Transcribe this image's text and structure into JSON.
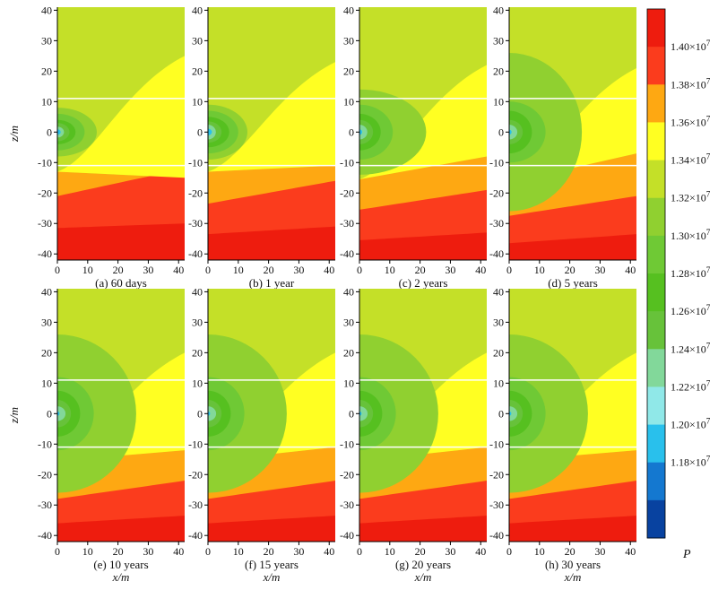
{
  "chart_data": {
    "type": "heatmap",
    "description_units": {
      "x": "m",
      "z": "m",
      "P": "Pa"
    },
    "x_label": "x/m",
    "z_label": "z/m",
    "xlim": [
      0,
      42
    ],
    "zlim": [
      -42,
      41
    ],
    "x_ticks": [
      0,
      10,
      20,
      30,
      40
    ],
    "x_tick_labels": [
      "0",
      "10",
      "20",
      "30",
      "40"
    ],
    "z_ticks": [
      40,
      30,
      20,
      10,
      0,
      -10,
      -20,
      -30,
      -40
    ],
    "z_tick_labels": [
      "40",
      "30",
      "20",
      "10",
      "0",
      "-10",
      "-20",
      "-30",
      "-40"
    ],
    "white_lines_z": [
      11,
      -11
    ],
    "colorbar": {
      "title": "P",
      "tick_labels": [
        "1.40×10^7",
        "1.38×10^7",
        "1.36×10^7",
        "1.34×10^7",
        "1.32×10^7",
        "1.30×10^7",
        "1.28×10^7",
        "1.26×10^7",
        "1.24×10^7",
        "1.22×10^7",
        "1.20×10^7",
        "1.18×10^7"
      ],
      "colors_top_to_bottom": [
        "#ee1c0e",
        "#fb3c1d",
        "#fea812",
        "#ffff22",
        "#c4e028",
        "#90d030",
        "#6fc935",
        "#56c020",
        "#67c23a",
        "#82d89a",
        "#90e8e8",
        "#29c0ec",
        "#1478d0",
        "#0842a0"
      ]
    },
    "panels": [
      {
        "label": "(a) 60 days",
        "bands": [
          [
            13.0,
            25,
            15
          ],
          [
            21,
            16,
            12
          ],
          [
            31.5,
            32,
            30
          ]
        ],
        "center_rings": [
          [
            13,
            8
          ],
          [
            9,
            6
          ],
          [
            6,
            4
          ],
          [
            4,
            3
          ],
          [
            2.2,
            1.8
          ],
          [
            1.1,
            0.9
          ]
        ]
      },
      {
        "label": "(b) 1 year",
        "bands": [
          [
            13.0,
            23,
            11
          ],
          [
            23.5,
            20,
            16
          ],
          [
            33.5,
            34,
            31
          ]
        ],
        "center_rings": [
          [
            13,
            9
          ],
          [
            10,
            7
          ],
          [
            7,
            5
          ],
          [
            4.5,
            3.5
          ],
          [
            2.6,
            2.4
          ],
          [
            1.3,
            1.1
          ]
        ]
      },
      {
        "label": "(c) 2 years",
        "bands": [
          [
            15.5,
            22,
            8
          ],
          [
            25.5,
            23,
            19
          ],
          [
            35.5,
            35,
            33
          ]
        ],
        "center_rings": [
          [
            22,
            14
          ],
          [
            11,
            9
          ],
          [
            7,
            6
          ],
          [
            4.5,
            4
          ],
          [
            2.6,
            2.4
          ],
          [
            0.9,
            0.9
          ]
        ]
      },
      {
        "label": "(d) 5 years",
        "bands": [
          [
            16.5,
            21,
            7
          ],
          [
            27.5,
            26,
            21
          ],
          [
            36.5,
            35.5,
            33.5
          ]
        ],
        "center_rings": [
          [
            24,
            26
          ],
          [
            12,
            10
          ],
          [
            7.5,
            7
          ],
          [
            4.5,
            4
          ],
          [
            2.7,
            2.4
          ],
          [
            0.8,
            0.8
          ]
        ]
      },
      {
        "label": "(e) 10 years",
        "bands": [
          [
            15.5,
            20,
            12
          ],
          [
            28.0,
            26,
            22
          ],
          [
            36.0,
            35.5,
            33.5
          ]
        ],
        "center_rings": [
          [
            26,
            26
          ],
          [
            12,
            12
          ],
          [
            7.5,
            7.5
          ],
          [
            4.5,
            4.5
          ],
          [
            2.7,
            2.4
          ],
          [
            0.7,
            0.7
          ]
        ]
      },
      {
        "label": "(f) 15 years",
        "bands": [
          [
            15.5,
            20,
            11
          ],
          [
            28.0,
            26,
            22
          ],
          [
            36.0,
            35.5,
            33.5
          ]
        ],
        "center_rings": [
          [
            26,
            26
          ],
          [
            12,
            12
          ],
          [
            7.5,
            7.5
          ],
          [
            4.5,
            4.5
          ],
          [
            2.7,
            2.4
          ],
          [
            0.7,
            0.7
          ]
        ]
      },
      {
        "label": "(g) 20 years",
        "bands": [
          [
            15.5,
            20,
            11
          ],
          [
            28.0,
            26,
            22
          ],
          [
            36.0,
            35.5,
            33.5
          ]
        ],
        "center_rings": [
          [
            26,
            26
          ],
          [
            12,
            12
          ],
          [
            7.5,
            7.5
          ],
          [
            4.5,
            4.5
          ],
          [
            2.7,
            2.4
          ],
          [
            0.7,
            0.7
          ]
        ]
      },
      {
        "label": "(h) 30 years",
        "bands": [
          [
            15.5,
            20,
            12
          ],
          [
            28.0,
            26,
            22
          ],
          [
            36.0,
            35.5,
            33.5
          ]
        ],
        "center_rings": [
          [
            26,
            26
          ],
          [
            12,
            12
          ],
          [
            7.5,
            7.5
          ],
          [
            4.5,
            4.5
          ],
          [
            2.7,
            2.4
          ],
          [
            0.7,
            0.7
          ]
        ]
      }
    ],
    "band_color_order": [
      "#ffff22",
      "#fea812",
      "#fb3c1d",
      "#ee1c0e"
    ],
    "background_color": "#c4e028",
    "ring_color_order": [
      "#90d030",
      "#6fc935",
      "#56c020",
      "#67c23a",
      "#82d89a",
      "#29c0ec"
    ]
  }
}
